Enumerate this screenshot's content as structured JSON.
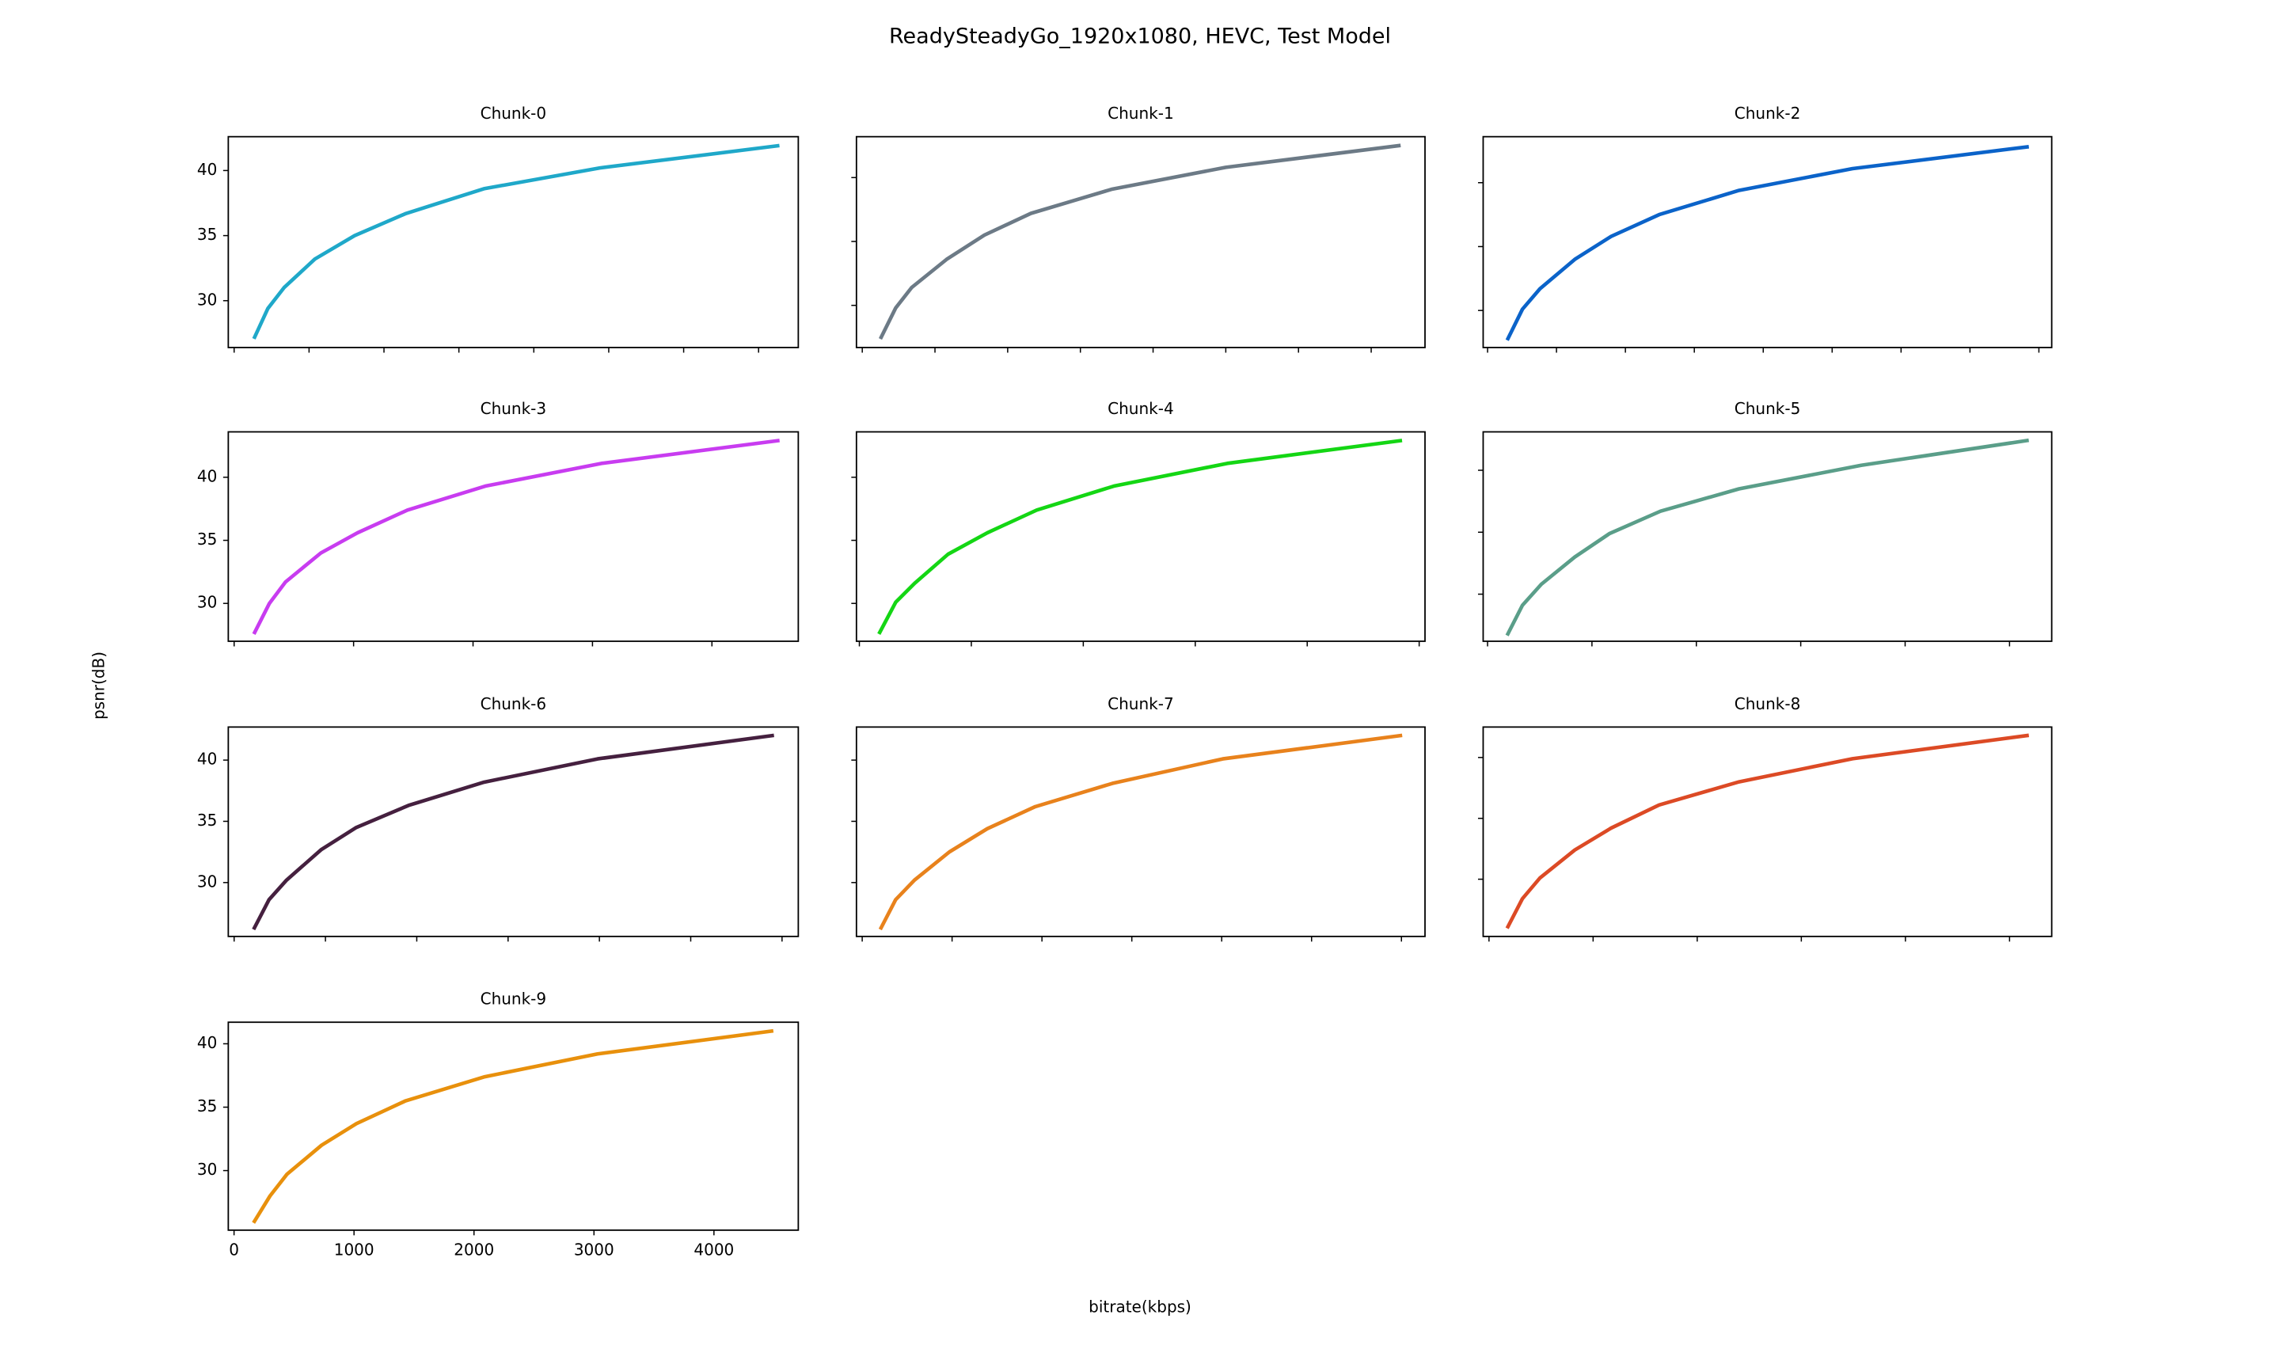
{
  "title": "ReadySteadyGo_1920x1080, HEVC, Test Model",
  "x_label": "bitrate(kbps)",
  "y_label": "psnr(dB)",
  "chart_data": [
    {
      "type": "line",
      "title": "Chunk-0",
      "color": "#1fa8c9",
      "x": [
        137,
        225,
        333,
        539,
        804,
        1147,
        1667,
        2441,
        3627
      ],
      "values": [
        27.2,
        29.4,
        31.0,
        33.2,
        35.0,
        36.7,
        38.6,
        40.2,
        41.9
      ],
      "xlim": [
        -39,
        3765
      ],
      "ylim": [
        26.4,
        42.6
      ],
      "xticks": [
        0,
        500,
        1000,
        1500,
        2000,
        2500,
        3000,
        3500
      ],
      "yticks": [
        30,
        35,
        40
      ],
      "xtick_labels": false,
      "ytick_labels": true
    },
    {
      "type": "line",
      "title": "Chunk-1",
      "color": "#6c7a86",
      "x": [
        130,
        230,
        340,
        580,
        840,
        1160,
        1720,
        2500,
        3690
      ],
      "values": [
        27.5,
        29.8,
        31.4,
        33.6,
        35.5,
        37.2,
        39.1,
        40.8,
        42.5
      ],
      "xlim": [
        -40,
        3870
      ],
      "ylim": [
        26.7,
        43.2
      ],
      "xticks": [
        0,
        500,
        1000,
        1500,
        2000,
        2500,
        3000,
        3500
      ],
      "yticks": [
        30,
        35,
        40
      ],
      "xtick_labels": false,
      "ytick_labels": false
    },
    {
      "type": "line",
      "title": "Chunk-2",
      "color": "#0b63c9",
      "x": [
        148,
        253,
        380,
        633,
        897,
        1245,
        1825,
        2648,
        3914
      ],
      "values": [
        27.8,
        30.1,
        31.7,
        34.0,
        35.8,
        37.5,
        39.4,
        41.1,
        42.8
      ],
      "xlim": [
        -32,
        4093
      ],
      "ylim": [
        27.1,
        43.6
      ],
      "xticks": [
        0,
        500,
        1000,
        1500,
        2000,
        2500,
        3000,
        3500,
        4000
      ],
      "yticks": [
        30,
        35,
        40
      ],
      "xtick_labels": false,
      "ytick_labels": false
    },
    {
      "type": "line",
      "title": "Chunk-3",
      "color": "#c83cf0",
      "x": [
        172,
        295,
        430,
        726,
        1033,
        1451,
        2103,
        3075,
        4551
      ],
      "values": [
        27.7,
        30.0,
        31.7,
        34.0,
        35.6,
        37.4,
        39.3,
        41.1,
        42.9
      ],
      "xlim": [
        -49,
        4723
      ],
      "ylim": [
        27.0,
        43.6
      ],
      "xticks": [
        0,
        1000,
        2000,
        3000,
        4000
      ],
      "yticks": [
        30,
        35,
        40
      ],
      "xtick_labels": false,
      "ytick_labels": true
    },
    {
      "type": "line",
      "title": "Chunk-4",
      "color": "#14d614",
      "x": [
        182,
        325,
        494,
        792,
        1143,
        1584,
        2273,
        3286,
        4831
      ],
      "values": [
        27.7,
        30.1,
        31.6,
        33.9,
        35.6,
        37.4,
        39.3,
        41.1,
        42.9
      ],
      "xlim": [
        -26,
        5052
      ],
      "ylim": [
        27.0,
        43.6
      ],
      "xticks": [
        0,
        1000,
        2000,
        3000,
        4000,
        5000
      ],
      "yticks": [
        30,
        35,
        40
      ],
      "xtick_labels": false,
      "ytick_labels": false
    },
    {
      "type": "line",
      "title": "Chunk-5",
      "color": "#5a9e89",
      "x": [
        195,
        334,
        515,
        836,
        1170,
        1657,
        2409,
        3579,
        5167
      ],
      "values": [
        26.8,
        29.1,
        30.8,
        33.0,
        34.9,
        36.7,
        38.5,
        40.4,
        42.4
      ],
      "xlim": [
        -42,
        5404
      ],
      "ylim": [
        26.2,
        43.1
      ],
      "xticks": [
        0,
        1000,
        2000,
        3000,
        4000,
        5000
      ],
      "yticks": [
        30,
        35,
        40
      ],
      "xtick_labels": false,
      "ytick_labels": false
    },
    {
      "type": "line",
      "title": "Chunk-6",
      "color": "#45203f",
      "x": [
        111,
        191,
        287,
        478,
        669,
        955,
        1369,
        1990,
        2946
      ],
      "values": [
        26.3,
        28.6,
        30.2,
        32.7,
        34.5,
        36.3,
        38.2,
        40.1,
        42.0
      ],
      "xlim": [
        -32,
        3089
      ],
      "ylim": [
        25.6,
        42.7
      ],
      "xticks": [
        0,
        500,
        1000,
        1500,
        2000,
        2500,
        3000
      ],
      "yticks": [
        30,
        35,
        40
      ],
      "xtick_labels": false,
      "ytick_labels": true
    },
    {
      "type": "line",
      "title": "Chunk-7",
      "color": "#e8821c",
      "x": [
        105,
        186,
        291,
        485,
        696,
        963,
        1392,
        2006,
        2994
      ],
      "values": [
        26.3,
        28.6,
        30.2,
        32.5,
        34.4,
        36.2,
        38.1,
        40.1,
        42.0
      ],
      "xlim": [
        -32,
        3131
      ],
      "ylim": [
        25.6,
        42.7
      ],
      "xticks": [
        0,
        500,
        1000,
        1500,
        2000,
        2500,
        3000
      ],
      "yticks": [
        30,
        35,
        40
      ],
      "xtick_labels": false,
      "ytick_labels": false
    },
    {
      "type": "line",
      "title": "Chunk-8",
      "color": "#dc4a25",
      "x": [
        182,
        321,
        489,
        824,
        1173,
        1634,
        2402,
        3492,
        5168
      ],
      "values": [
        26.1,
        28.4,
        30.1,
        32.4,
        34.2,
        36.1,
        38.0,
        39.9,
        41.8
      ],
      "xlim": [
        -56,
        5405
      ],
      "ylim": [
        25.3,
        42.5
      ],
      "xticks": [
        0,
        1000,
        2000,
        3000,
        4000,
        5000
      ],
      "yticks": [
        30,
        35,
        40
      ],
      "xtick_labels": false,
      "ytick_labels": false
    },
    {
      "type": "line",
      "title": "Chunk-9",
      "color": "#e8900c",
      "x": [
        170,
        300,
        440,
        730,
        1020,
        1430,
        2090,
        3030,
        4480
      ],
      "values": [
        26.0,
        28.0,
        29.7,
        32.0,
        33.7,
        35.5,
        37.4,
        39.2,
        41.0
      ],
      "xlim": [
        -48,
        4703
      ],
      "ylim": [
        25.3,
        41.7
      ],
      "xticks": [
        0,
        1000,
        2000,
        3000,
        4000
      ],
      "yticks": [
        30,
        35,
        40
      ],
      "xtick_labels": true,
      "ytick_labels": true
    }
  ]
}
